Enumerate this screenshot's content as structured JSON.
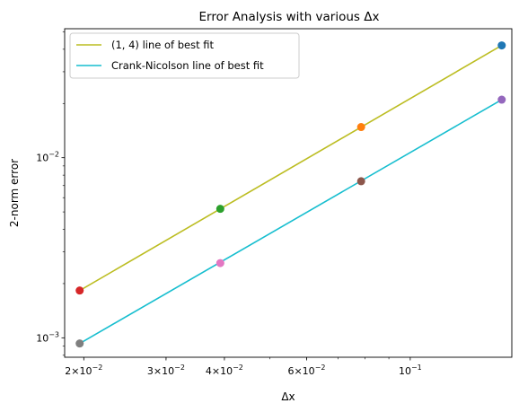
{
  "chart_data": {
    "type": "scatter",
    "title": "Error Analysis with various Δx",
    "xlabel": "Δx",
    "ylabel": "2-norm error",
    "xscale": "log",
    "yscale": "log",
    "xlim": [
      0.0182,
      0.165
    ],
    "ylim": [
      0.00078,
      0.052
    ],
    "x_ticks": [
      {
        "value": 0.02,
        "base": "2×10",
        "exp": "−2"
      },
      {
        "value": 0.03,
        "base": "3×10",
        "exp": "−2"
      },
      {
        "value": 0.04,
        "base": "4×10",
        "exp": "−2"
      },
      {
        "value": 0.06,
        "base": "6×10",
        "exp": "−2"
      },
      {
        "value": 0.1,
        "base": "10",
        "exp": "−1"
      }
    ],
    "y_ticks": [
      {
        "value": 0.001,
        "base": "10",
        "exp": "−3"
      },
      {
        "value": 0.01,
        "base": "10",
        "exp": "−2"
      }
    ],
    "grid": false,
    "legend_position": "top-left",
    "series": [
      {
        "name": "(1, 4) line of best fit",
        "kind": "line",
        "color": "#bcbd22",
        "x": [
          0.0196,
          0.157
        ],
        "y": [
          0.00183,
          0.042
        ]
      },
      {
        "name": "Crank-Nicolson line of best fit",
        "kind": "line",
        "color": "#17becf",
        "x": [
          0.0196,
          0.157
        ],
        "y": [
          0.00093,
          0.021
        ]
      }
    ],
    "points": [
      {
        "x": 0.157,
        "y": 0.042,
        "color": "#1f77b4"
      },
      {
        "x": 0.0785,
        "y": 0.0148,
        "color": "#ff7f0e"
      },
      {
        "x": 0.0392,
        "y": 0.0052,
        "color": "#2ca02c"
      },
      {
        "x": 0.0196,
        "y": 0.00183,
        "color": "#d62728"
      },
      {
        "x": 0.157,
        "y": 0.021,
        "color": "#9467bd"
      },
      {
        "x": 0.0785,
        "y": 0.0074,
        "color": "#8c564b"
      },
      {
        "x": 0.0392,
        "y": 0.0026,
        "color": "#e377c2"
      },
      {
        "x": 0.0196,
        "y": 0.00093,
        "color": "#7f7f7f"
      }
    ]
  }
}
